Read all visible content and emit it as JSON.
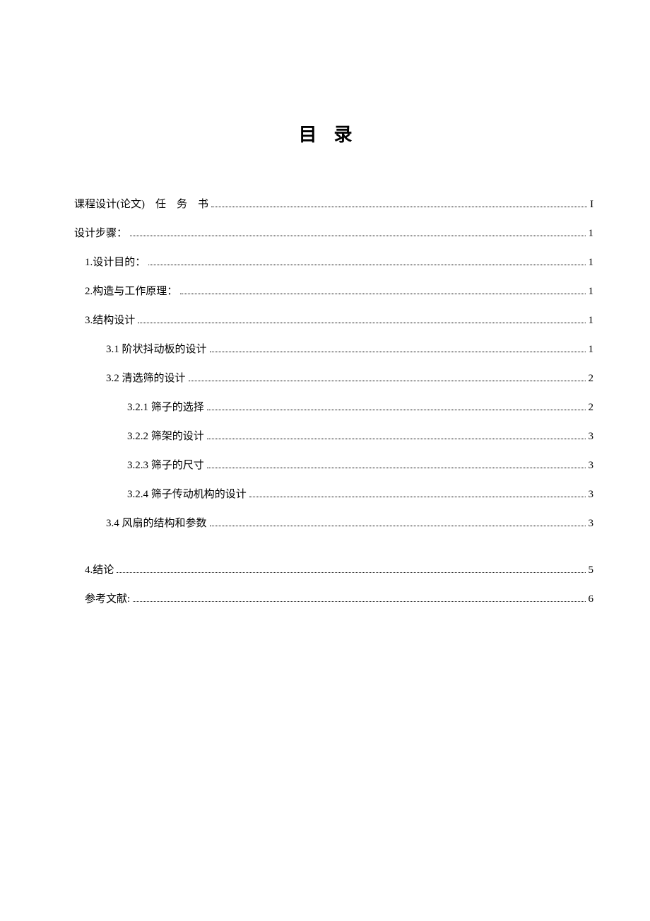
{
  "title": "目录",
  "entries": [
    {
      "label": "课程设计(论文)　任　务　书",
      "page": "I",
      "indent": 0,
      "gap": false
    },
    {
      "label": "设计步骤：",
      "page": "1",
      "indent": 0,
      "gap": false
    },
    {
      "label": "1.设计目的：",
      "page": "1",
      "indent": 1,
      "gap": false
    },
    {
      "label": "2.构造与工作原理：",
      "page": "1",
      "indent": 1,
      "gap": false
    },
    {
      "label": "3.结构设计",
      "page": "1",
      "indent": 1,
      "gap": false
    },
    {
      "label": "3.1 阶状抖动板的设计",
      "page": "1",
      "indent": 2,
      "gap": false
    },
    {
      "label": "3.2 清选筛的设计",
      "page": "2",
      "indent": 2,
      "gap": false
    },
    {
      "label": "3.2.1 筛子的选择",
      "page": "2",
      "indent": 3,
      "gap": false
    },
    {
      "label": "3.2.2 筛架的设计",
      "page": "3",
      "indent": 3,
      "gap": false
    },
    {
      "label": "3.2.3 筛子的尺寸",
      "page": "3",
      "indent": 3,
      "gap": false
    },
    {
      "label": "3.2.4 筛子传动机构的设计",
      "page": "3",
      "indent": 3,
      "gap": false
    },
    {
      "label": "3.4 风扇的结构和参数",
      "page": "3",
      "indent": 2,
      "gap": false
    },
    {
      "label": "4.结论",
      "page": "5",
      "indent": 1,
      "gap": true
    },
    {
      "label": "参考文献:",
      "page": "6",
      "indent": 1,
      "gap": false
    }
  ],
  "colors": {
    "background": "#ffffff",
    "text": "#000000"
  },
  "fonts": {
    "title_size": 26,
    "entry_size": 15
  }
}
